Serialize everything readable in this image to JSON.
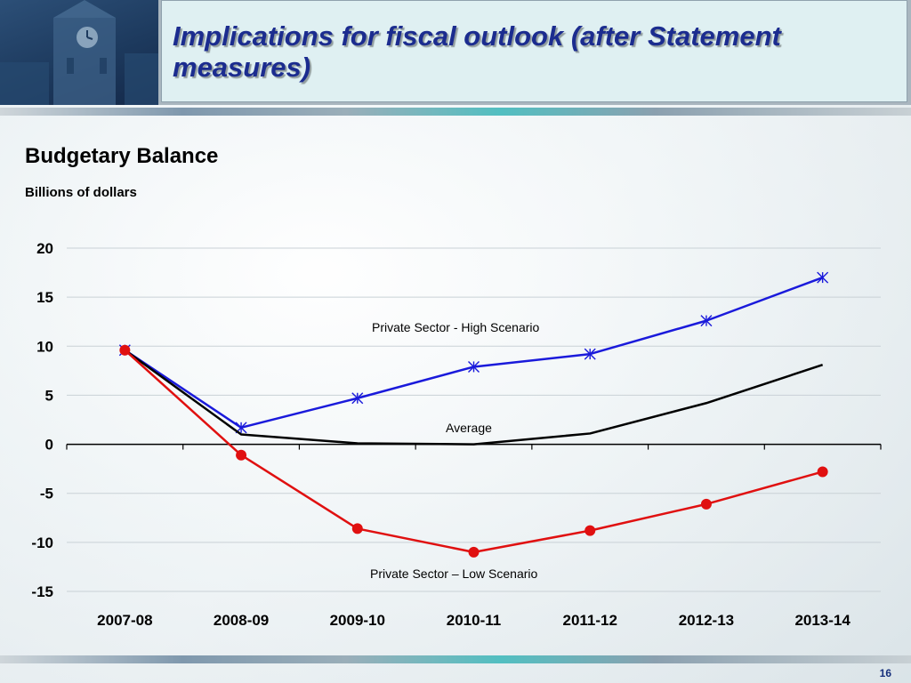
{
  "header": {
    "title": "Implications for fiscal outlook (after Statement measures)"
  },
  "footer": {
    "page_number": "16"
  },
  "colors": {
    "high": "#1a1adb",
    "average": "#000000",
    "low": "#e01010",
    "title": "#1b2c8f"
  },
  "chart_data": {
    "type": "line",
    "title": "Budgetary Balance",
    "subtitle": "Billions of dollars",
    "xlabel": "",
    "ylabel": "",
    "categories": [
      "2007-08",
      "2008-09",
      "2009-10",
      "2010-11",
      "2011-12",
      "2012-13",
      "2013-14"
    ],
    "ylim": [
      -15,
      20
    ],
    "yticks": [
      20,
      15,
      10,
      5,
      0,
      -5,
      -10,
      -15
    ],
    "grid": true,
    "series": [
      {
        "name": "Private Sector - High Scenario",
        "marker": "asterisk",
        "color": "#1a1adb",
        "values": [
          9.6,
          1.7,
          4.7,
          7.9,
          9.2,
          12.6,
          17.0
        ]
      },
      {
        "name": "Average",
        "marker": "none",
        "color": "#000000",
        "values": [
          9.6,
          1.0,
          0.1,
          0.0,
          1.1,
          4.2,
          8.1
        ]
      },
      {
        "name": "Private Sector – Low Scenario",
        "marker": "circle",
        "color": "#e01010",
        "values": [
          9.6,
          -1.1,
          -8.6,
          -11.0,
          -8.8,
          -6.1,
          -2.8
        ]
      }
    ]
  }
}
